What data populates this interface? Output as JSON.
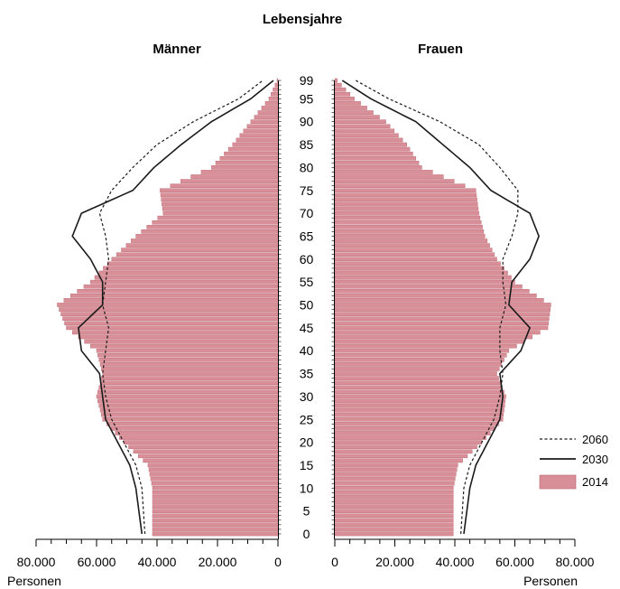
{
  "chart_data": {
    "type": "bar",
    "subtype": "population-pyramid",
    "title": "Lebensjahre",
    "left_label": "Männer",
    "right_label": "Frauen",
    "unit_label": "Personen",
    "x_ticks_left": [
      "80.000",
      "60.000",
      "40.000",
      "20.000",
      "0"
    ],
    "x_ticks_right": [
      "0",
      "20.000",
      "40.000",
      "60.000",
      "80.000"
    ],
    "x_max": 80000,
    "age_range": [
      0,
      99
    ],
    "age_labels": [
      "0",
      "5",
      "10",
      "15",
      "20",
      "25",
      "30",
      "35",
      "40",
      "45",
      "50",
      "55",
      "60",
      "65",
      "70",
      "75",
      "80",
      "85",
      "90",
      "95",
      "99"
    ],
    "legend": [
      "2060",
      "2030",
      "2014"
    ],
    "colors": {
      "bar_2014": "#d98f97",
      "bar_edge": "#b8646e",
      "line": "#1a1a1a",
      "axis": "#000000"
    },
    "ages": [
      0,
      5,
      10,
      15,
      20,
      25,
      30,
      35,
      40,
      45,
      50,
      55,
      60,
      65,
      70,
      75,
      80,
      85,
      90,
      95,
      99
    ],
    "series": [
      {
        "name": "2014",
        "style": "bars",
        "men": [
          41500,
          41500,
          41500,
          43000,
          51000,
          58000,
          60000,
          58000,
          60000,
          70000,
          73000,
          62000,
          55000,
          47000,
          38000,
          39000,
          22000,
          15000,
          9000,
          3000,
          300
        ],
        "women": [
          39500,
          39500,
          39500,
          41000,
          49000,
          56000,
          57000,
          54000,
          58000,
          71000,
          72000,
          60000,
          54000,
          50000,
          48000,
          47000,
          29000,
          24000,
          17000,
          6500,
          800
        ]
      },
      {
        "name": "2030",
        "style": "solid",
        "men": [
          45000,
          46000,
          47000,
          49000,
          53000,
          57000,
          58000,
          59000,
          65000,
          66000,
          58000,
          58000,
          62000,
          68000,
          65000,
          48000,
          41000,
          32000,
          22000,
          9000,
          1500
        ],
        "women": [
          43000,
          44000,
          45000,
          47000,
          51000,
          55000,
          56000,
          55000,
          62000,
          65000,
          58000,
          59000,
          65000,
          68000,
          65000,
          52000,
          45000,
          36000,
          27000,
          12000,
          2500
        ]
      },
      {
        "name": "2060",
        "style": "dashed",
        "men": [
          44000,
          44500,
          45000,
          47000,
          51000,
          55000,
          57000,
          58000,
          57000,
          56000,
          58000,
          57000,
          56000,
          57000,
          59000,
          55000,
          48000,
          40000,
          28000,
          13000,
          5000
        ],
        "women": [
          42000,
          42500,
          43000,
          45000,
          49000,
          53000,
          55000,
          56000,
          55000,
          55000,
          57000,
          56000,
          56000,
          59000,
          61000,
          61000,
          55000,
          48000,
          35000,
          18000,
          7000
        ]
      }
    ]
  }
}
